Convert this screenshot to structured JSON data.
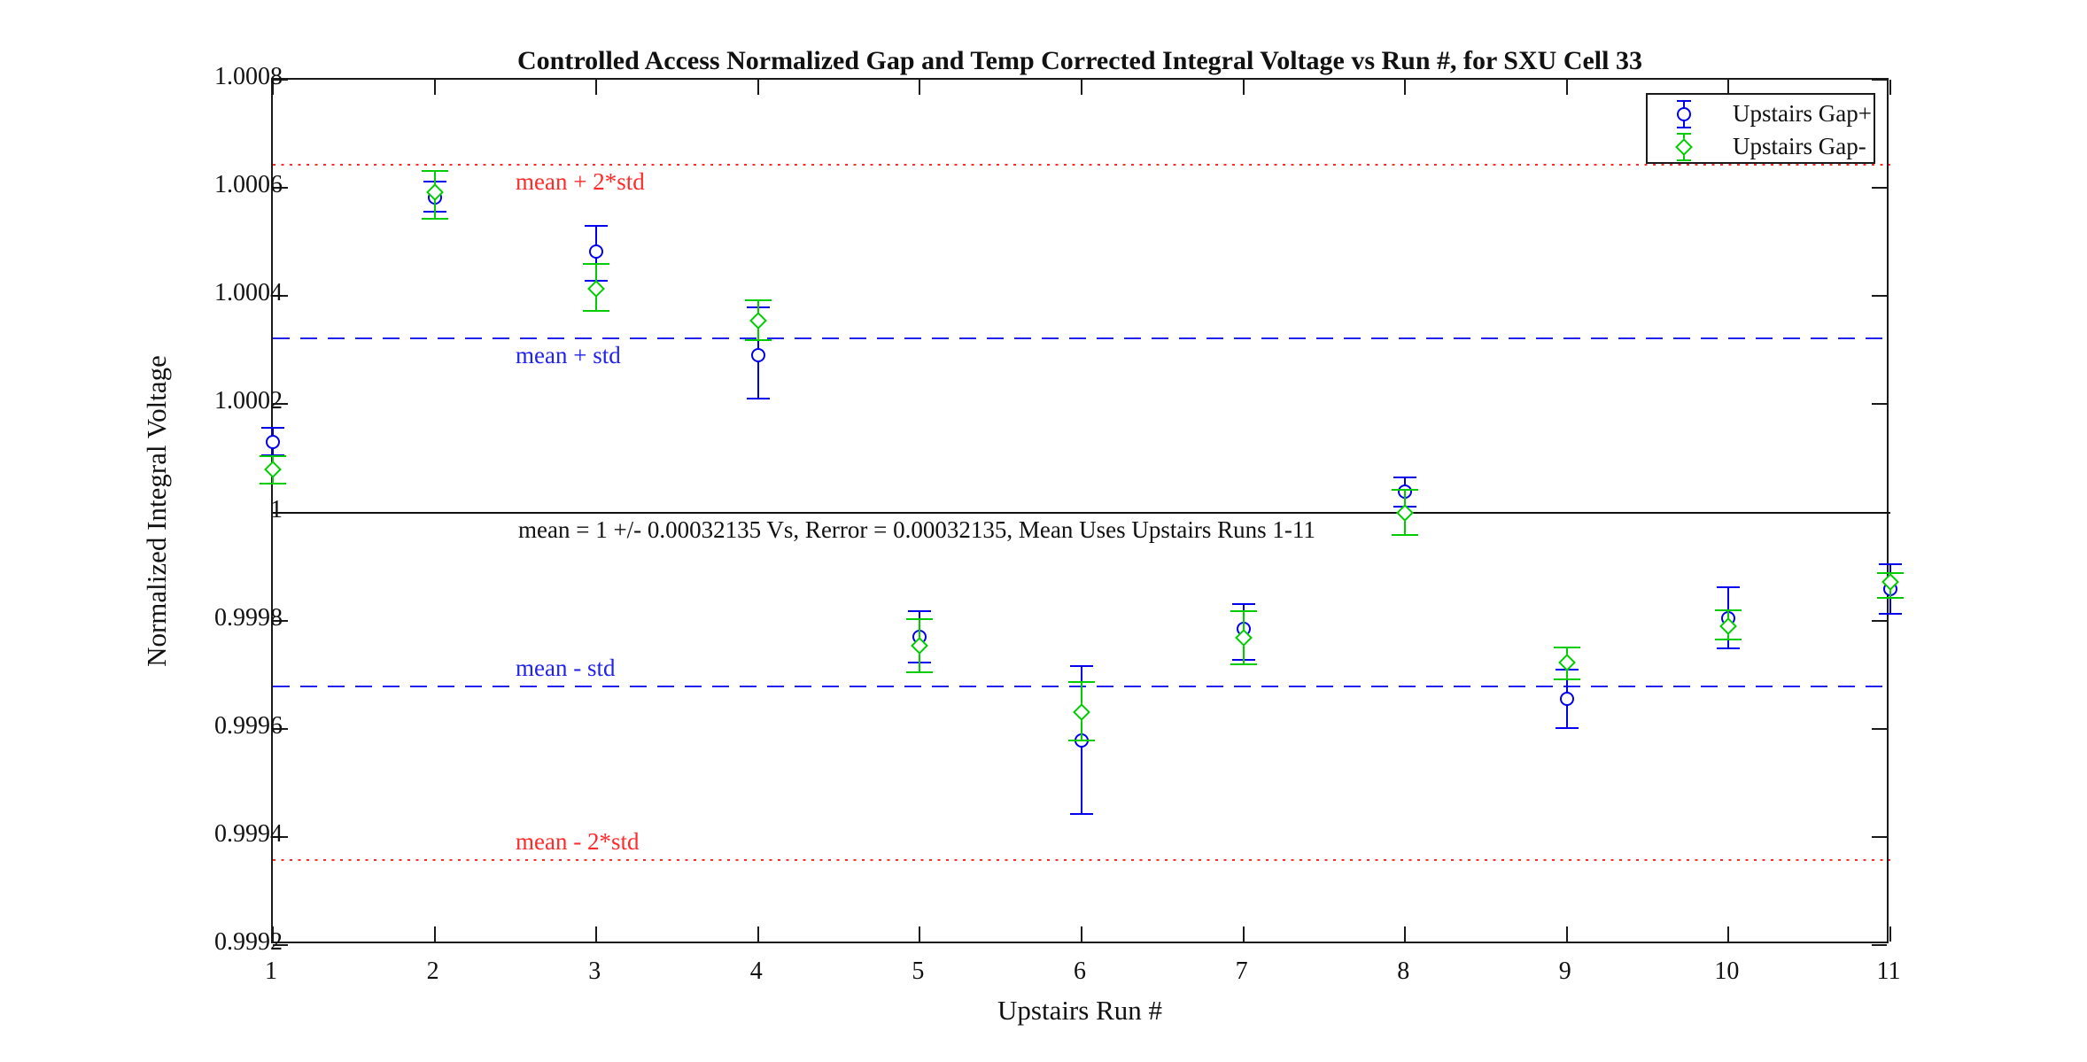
{
  "chart_data": {
    "type": "scatter",
    "title": "Controlled Access Normalized Gap and Temp Corrected Integral Voltage vs Run #, for SXU Cell 33",
    "xlabel": "Upstairs Run #",
    "ylabel": "Normalized Integral Voltage",
    "xlim": [
      1,
      11
    ],
    "ylim": [
      0.9992,
      1.0008
    ],
    "grid": false,
    "legend_position": "top-right",
    "x_ticks": [
      1,
      2,
      3,
      4,
      5,
      6,
      7,
      8,
      9,
      10,
      11
    ],
    "y_ticks": [
      {
        "label": "1.0008",
        "value": 1.0008
      },
      {
        "label": "1.0006",
        "value": 1.0006
      },
      {
        "label": "1.0004",
        "value": 1.0004
      },
      {
        "label": "1.0002",
        "value": 1.0002
      },
      {
        "label": "1",
        "value": 1.0
      },
      {
        "label": "0.9998",
        "value": 0.9998
      },
      {
        "label": "0.9996",
        "value": 0.9996
      },
      {
        "label": "0.9994",
        "value": 0.9994
      },
      {
        "label": "0.9992",
        "value": 0.9992
      }
    ],
    "mean": 1,
    "std": 0.00032135,
    "series": [
      {
        "name": "Upstairs Gap+",
        "marker": "circle",
        "color": "#0000EE",
        "x": [
          1,
          2,
          3,
          4,
          5,
          6,
          7,
          8,
          9,
          10,
          11
        ],
        "y": [
          1.00013,
          1.000582,
          1.000483,
          1.00029,
          0.99977,
          0.999579,
          0.999785,
          1.000038,
          0.999656,
          0.999804,
          0.999858
        ],
        "err_up": [
          2.7e-05,
          3e-05,
          4.7e-05,
          8.9e-05,
          4.7e-05,
          0.000137,
          4.5e-05,
          2.6e-05,
          5.4e-05,
          5.8e-05,
          4.6e-05
        ],
        "err_down": [
          2.4e-05,
          2.6e-05,
          5.4e-05,
          8e-05,
          4.8e-05,
          0.000137,
          5.8e-05,
          2.8e-05,
          5.5e-05,
          5.6e-05,
          4.6e-05
        ]
      },
      {
        "name": "Upstairs Gap-",
        "marker": "diamond",
        "color": "#00CC00",
        "x": [
          1,
          2,
          3,
          4,
          5,
          6,
          7,
          8,
          9,
          10,
          11
        ],
        "y": [
          1.000079,
          1.000592,
          1.000413,
          1.000355,
          0.999753,
          0.999631,
          0.999768,
          1.0,
          0.999722,
          0.99979,
          0.999871
        ],
        "err_up": [
          2.5e-05,
          4e-05,
          4.7e-05,
          3.7e-05,
          5e-05,
          5.6e-05,
          4.9e-05,
          4.2e-05,
          2.9e-05,
          2.9e-05,
          1.7e-05
        ],
        "err_down": [
          2.6e-05,
          4.9e-05,
          4.1e-05,
          3.6e-05,
          4.8e-05,
          5.2e-05,
          4.9e-05,
          4.1e-05,
          3.1e-05,
          2.5e-05,
          2.9e-05
        ]
      }
    ],
    "reference_lines": [
      {
        "label": "mean + 2*std",
        "value": 1.0006427,
        "style": "dotted",
        "color": "#FF2A2A",
        "label_side": "below"
      },
      {
        "label": "mean + std",
        "value": 1.00032135,
        "style": "dashed",
        "color": "#2222EE",
        "label_side": "below"
      },
      {
        "label": "",
        "value": 1.0,
        "style": "solid",
        "color": "#111111",
        "label_side": "none"
      },
      {
        "label": "mean - std",
        "value": 0.99967865,
        "style": "dashed",
        "color": "#2222EE",
        "label_side": "above"
      },
      {
        "label": "mean - 2*std",
        "value": 0.9993573,
        "style": "dotted",
        "color": "#FF2A2A",
        "label_side": "above"
      }
    ],
    "annotation": "mean = 1 +/- 0.00032135 Vs, Rerror = 0.00032135, Mean Uses Upstairs Runs 1-11"
  },
  "legend": {
    "entries": [
      {
        "label": "Upstairs Gap+",
        "marker": "circle",
        "color": "#0000EE"
      },
      {
        "label": "Upstairs Gap-",
        "marker": "diamond",
        "color": "#00CC00"
      }
    ]
  }
}
